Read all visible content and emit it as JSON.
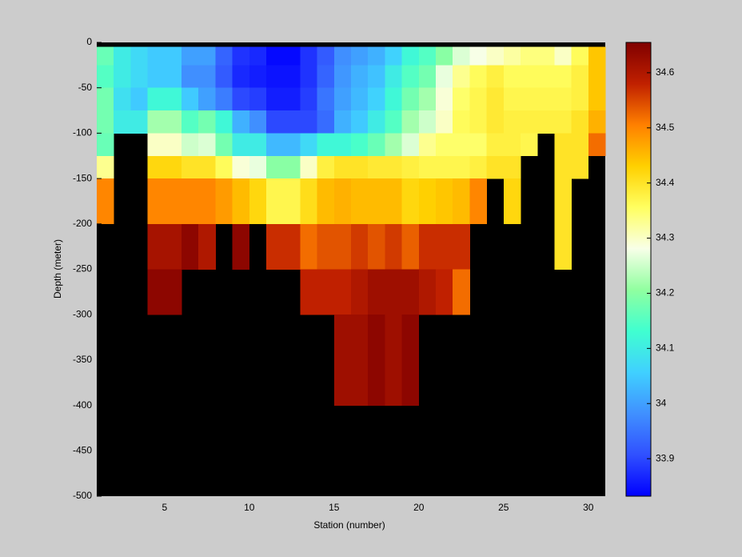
{
  "chart_data": {
    "type": "heatmap",
    "xlabel": "Station (number)",
    "ylabel": "Depth (meter)",
    "x_edges": [
      1,
      2,
      3,
      4,
      5,
      6,
      7,
      8,
      9,
      10,
      11,
      12,
      13,
      14,
      15,
      16,
      17,
      18,
      19,
      20,
      21,
      22,
      23,
      24,
      25,
      26,
      27,
      28,
      29,
      30,
      31
    ],
    "y_edges": [
      -5,
      -25,
      -50,
      -75,
      -100,
      -125,
      -150,
      -200,
      -250,
      -300,
      -400
    ],
    "z": [
      [
        34.17,
        34.1,
        34.07,
        34.05,
        34.05,
        34.0,
        34.0,
        33.93,
        33.88,
        33.87,
        33.84,
        33.84,
        33.88,
        33.92,
        33.98,
        34.0,
        34.02,
        34.06,
        34.12,
        34.15,
        34.2,
        34.26,
        34.28,
        34.3,
        34.32,
        34.34,
        34.34,
        34.3,
        34.36,
        34.44
      ],
      [
        34.15,
        34.1,
        34.07,
        34.05,
        34.05,
        33.98,
        33.98,
        33.92,
        33.87,
        33.86,
        33.85,
        33.85,
        33.88,
        33.93,
        33.99,
        34.02,
        34.04,
        34.1,
        34.15,
        34.18,
        34.27,
        34.33,
        34.36,
        34.38,
        34.36,
        34.36,
        34.36,
        34.36,
        34.38,
        34.44
      ],
      [
        34.18,
        34.08,
        34.05,
        34.12,
        34.12,
        34.05,
        34.0,
        33.96,
        33.9,
        33.89,
        33.86,
        33.86,
        33.89,
        33.95,
        34.0,
        34.03,
        34.06,
        34.12,
        34.18,
        34.22,
        34.29,
        34.35,
        34.37,
        34.39,
        34.37,
        34.37,
        34.37,
        34.37,
        34.38,
        34.44
      ],
      [
        34.18,
        34.1,
        34.1,
        34.22,
        34.22,
        34.15,
        34.18,
        34.12,
        34.02,
        33.98,
        33.9,
        33.9,
        33.9,
        33.94,
        34.02,
        34.05,
        34.1,
        34.15,
        34.22,
        34.25,
        34.3,
        34.36,
        34.37,
        34.39,
        34.38,
        34.38,
        34.38,
        34.38,
        34.4,
        34.46
      ],
      [
        34.17,
        null,
        null,
        34.3,
        34.3,
        34.25,
        34.26,
        34.18,
        34.1,
        34.1,
        34.03,
        34.03,
        34.07,
        34.12,
        34.12,
        34.14,
        34.17,
        34.22,
        34.26,
        34.33,
        34.35,
        34.35,
        34.35,
        34.38,
        34.38,
        34.37,
        null,
        34.4,
        34.4,
        34.52
      ],
      [
        34.33,
        null,
        null,
        34.42,
        34.42,
        34.4,
        34.4,
        34.36,
        34.29,
        34.27,
        34.2,
        34.2,
        34.3,
        34.38,
        34.4,
        34.4,
        34.39,
        34.39,
        34.38,
        34.37,
        34.37,
        34.37,
        34.38,
        34.4,
        34.4,
        null,
        null,
        34.4,
        34.4,
        null
      ],
      [
        34.5,
        null,
        null,
        34.5,
        34.5,
        34.5,
        34.5,
        34.48,
        34.45,
        34.42,
        34.37,
        34.37,
        34.41,
        34.45,
        34.46,
        34.45,
        34.45,
        34.45,
        34.42,
        34.43,
        34.44,
        34.45,
        34.5,
        null,
        34.42,
        null,
        null,
        34.4,
        null,
        null
      ],
      [
        null,
        null,
        null,
        34.61,
        34.61,
        34.64,
        34.6,
        null,
        34.64,
        null,
        34.57,
        34.57,
        34.52,
        34.54,
        34.54,
        34.56,
        34.54,
        34.56,
        34.53,
        34.57,
        34.57,
        34.57,
        null,
        null,
        null,
        null,
        null,
        34.4,
        null,
        null
      ],
      [
        null,
        null,
        null,
        34.64,
        34.64,
        null,
        null,
        null,
        null,
        null,
        null,
        null,
        34.58,
        34.58,
        34.58,
        34.6,
        34.62,
        34.62,
        34.62,
        34.6,
        34.58,
        34.52,
        null,
        null,
        null,
        null,
        null,
        null,
        null,
        null
      ],
      [
        null,
        null,
        null,
        null,
        null,
        null,
        null,
        null,
        null,
        null,
        null,
        null,
        null,
        null,
        34.62,
        34.62,
        34.64,
        34.62,
        34.64,
        null,
        null,
        null,
        null,
        null,
        null,
        null,
        null,
        null,
        null,
        null
      ]
    ],
    "xlim": [
      1,
      31
    ],
    "xticks": [
      5,
      10,
      15,
      20,
      25,
      30
    ],
    "ylim": [
      -500,
      0
    ],
    "yticks": [
      -500,
      -450,
      -400,
      -350,
      -300,
      -250,
      -200,
      -150,
      -100,
      -50,
      0
    ],
    "clim": [
      33.832,
      34.655
    ],
    "cticks": [
      33.9,
      34,
      34.1,
      34.2,
      34.3,
      34.4,
      34.5,
      34.6
    ],
    "colormap": [
      "#0000ff",
      "#3050ff",
      "#4090ff",
      "#40d0ff",
      "#40ffd0",
      "#90ffa0",
      "#f8ffe8",
      "#ffff60",
      "#ffd000",
      "#ff8000",
      "#c02000",
      "#800000"
    ],
    "background": "#000000"
  }
}
